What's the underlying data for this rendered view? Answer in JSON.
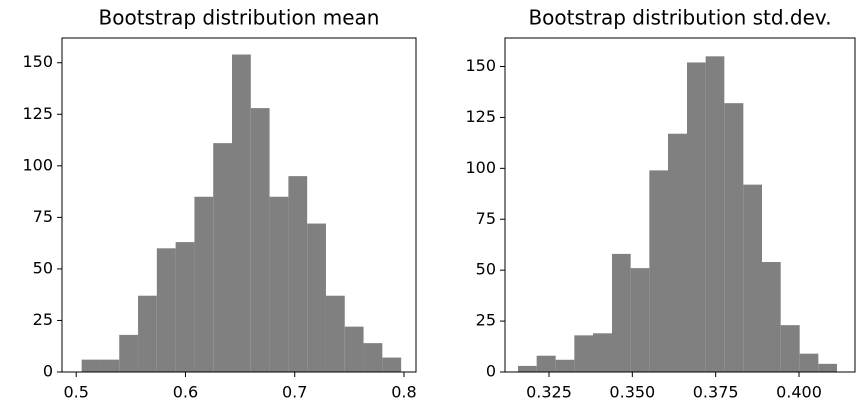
{
  "chart_data": [
    {
      "type": "histogram",
      "title": "Bootstrap distribution mean",
      "color": "#808080",
      "bins": [
        0.505,
        0.5222,
        0.5394,
        0.5566,
        0.5738,
        0.591,
        0.6082,
        0.6254,
        0.6426,
        0.6598,
        0.677,
        0.6942,
        0.7114,
        0.7286,
        0.7458,
        0.763,
        0.7802,
        0.7974
      ],
      "values": [
        6,
        6,
        18,
        37,
        60,
        63,
        85,
        111,
        154,
        128,
        85,
        95,
        72,
        37,
        22,
        14,
        7
      ],
      "xlim": [
        0.487,
        0.811
      ],
      "xticks": [
        0.5,
        0.6,
        0.7,
        0.8
      ],
      "ylim": [
        0,
        162
      ],
      "yticks": [
        0,
        25,
        50,
        75,
        100,
        125,
        150
      ]
    },
    {
      "type": "histogram",
      "title": "Bootstrap distribution std.dev.",
      "color": "#808080",
      "bins": [
        0.3157,
        0.3213,
        0.327,
        0.3326,
        0.3382,
        0.3439,
        0.3495,
        0.3551,
        0.3607,
        0.3664,
        0.372,
        0.3776,
        0.3833,
        0.3889,
        0.3945,
        0.4002,
        0.4058,
        0.4114
      ],
      "values": [
        3,
        8,
        6,
        18,
        19,
        58,
        51,
        99,
        117,
        152,
        155,
        132,
        92,
        54,
        23,
        9,
        4
      ],
      "xlim": [
        0.3118,
        0.4168
      ],
      "xticks": [
        0.325,
        {
          "value": 0.35,
          "label": "0.350"
        },
        0.375,
        {
          "value": 0.4,
          "label": "0.400"
        }
      ],
      "ylim": [
        0,
        164
      ],
      "yticks": [
        0,
        25,
        50,
        75,
        100,
        125,
        150
      ]
    }
  ]
}
